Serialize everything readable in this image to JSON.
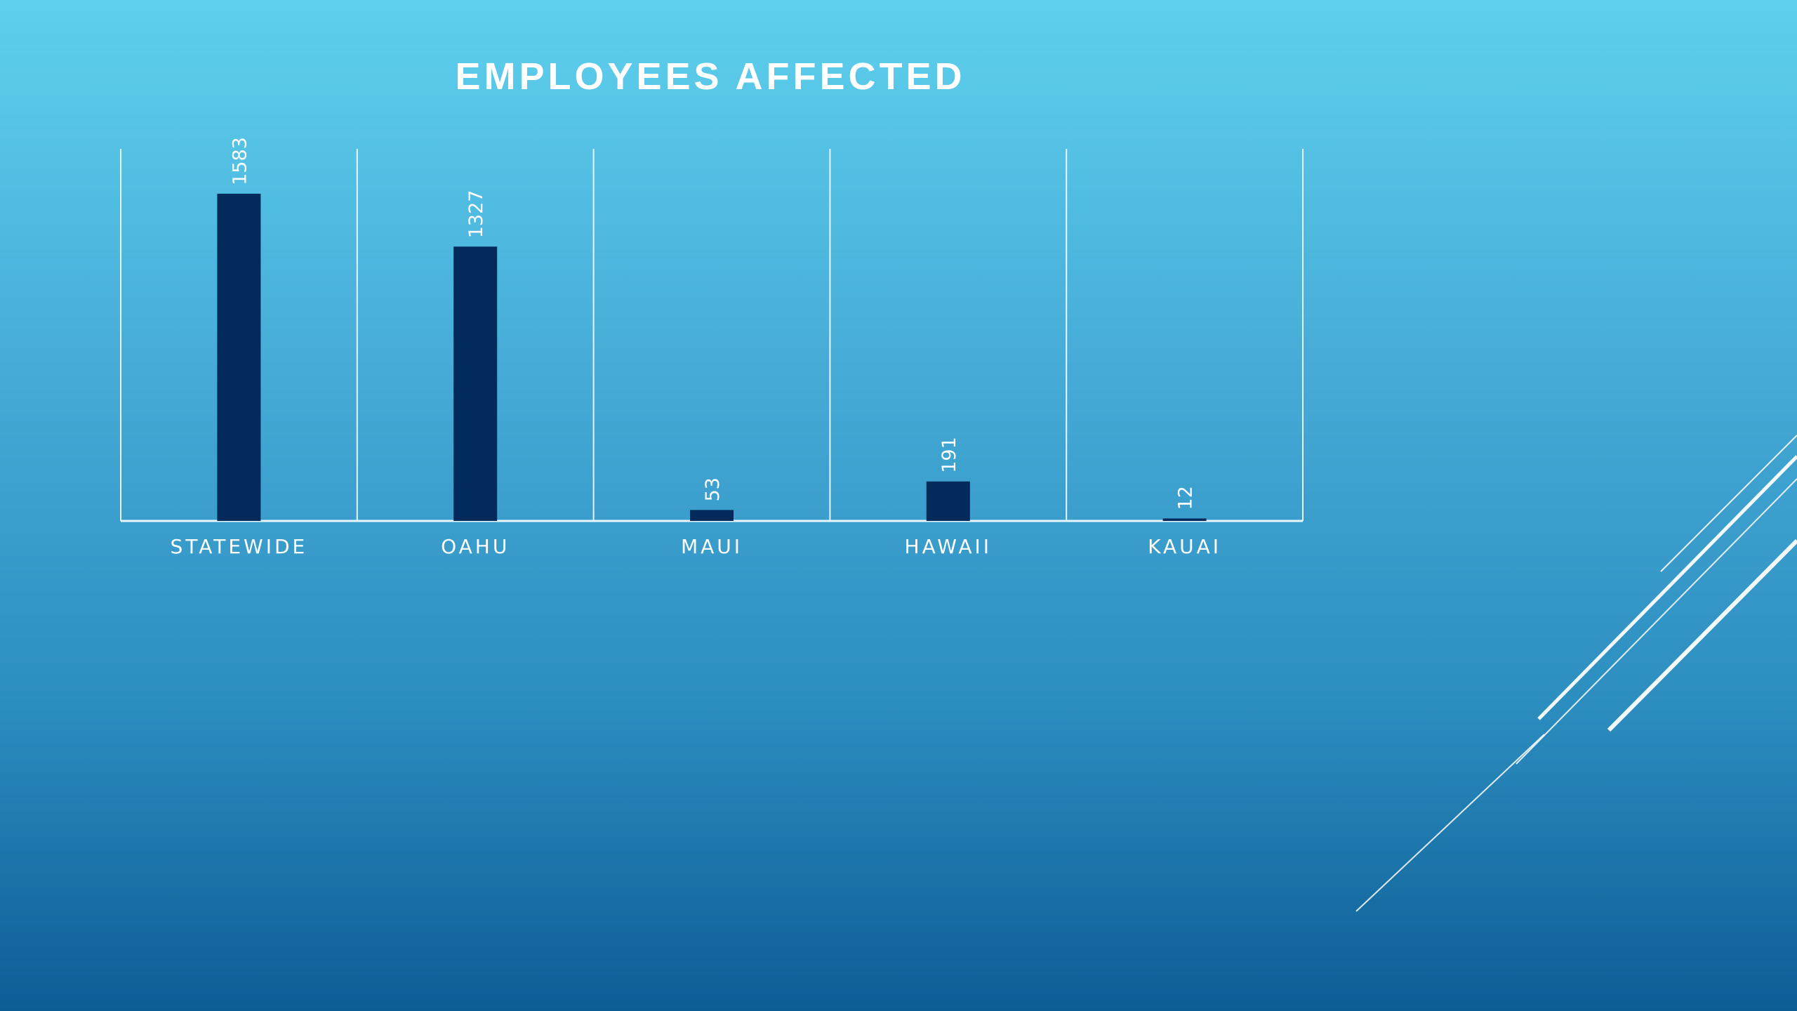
{
  "chart_data": {
    "type": "bar",
    "title": "EMPLOYEES AFFECTED",
    "categories": [
      "STATEWIDE",
      "OAHU",
      "MAUI",
      "HAWAII",
      "KAUAI"
    ],
    "values": [
      1583,
      1327,
      53,
      191,
      12
    ],
    "xlabel": "",
    "ylabel": "",
    "ylim": [
      0,
      1800
    ],
    "grid": "vertical separators",
    "legend": "none",
    "bar_color": "#022a5a",
    "axis_color": "#e8f6fb",
    "data_label_orientation": "vertical"
  },
  "colors": {
    "background_top": "#5ed0ee",
    "background_bottom": "#0d5d95",
    "text": "#ffffff",
    "decor_lines": "#ffffff"
  }
}
